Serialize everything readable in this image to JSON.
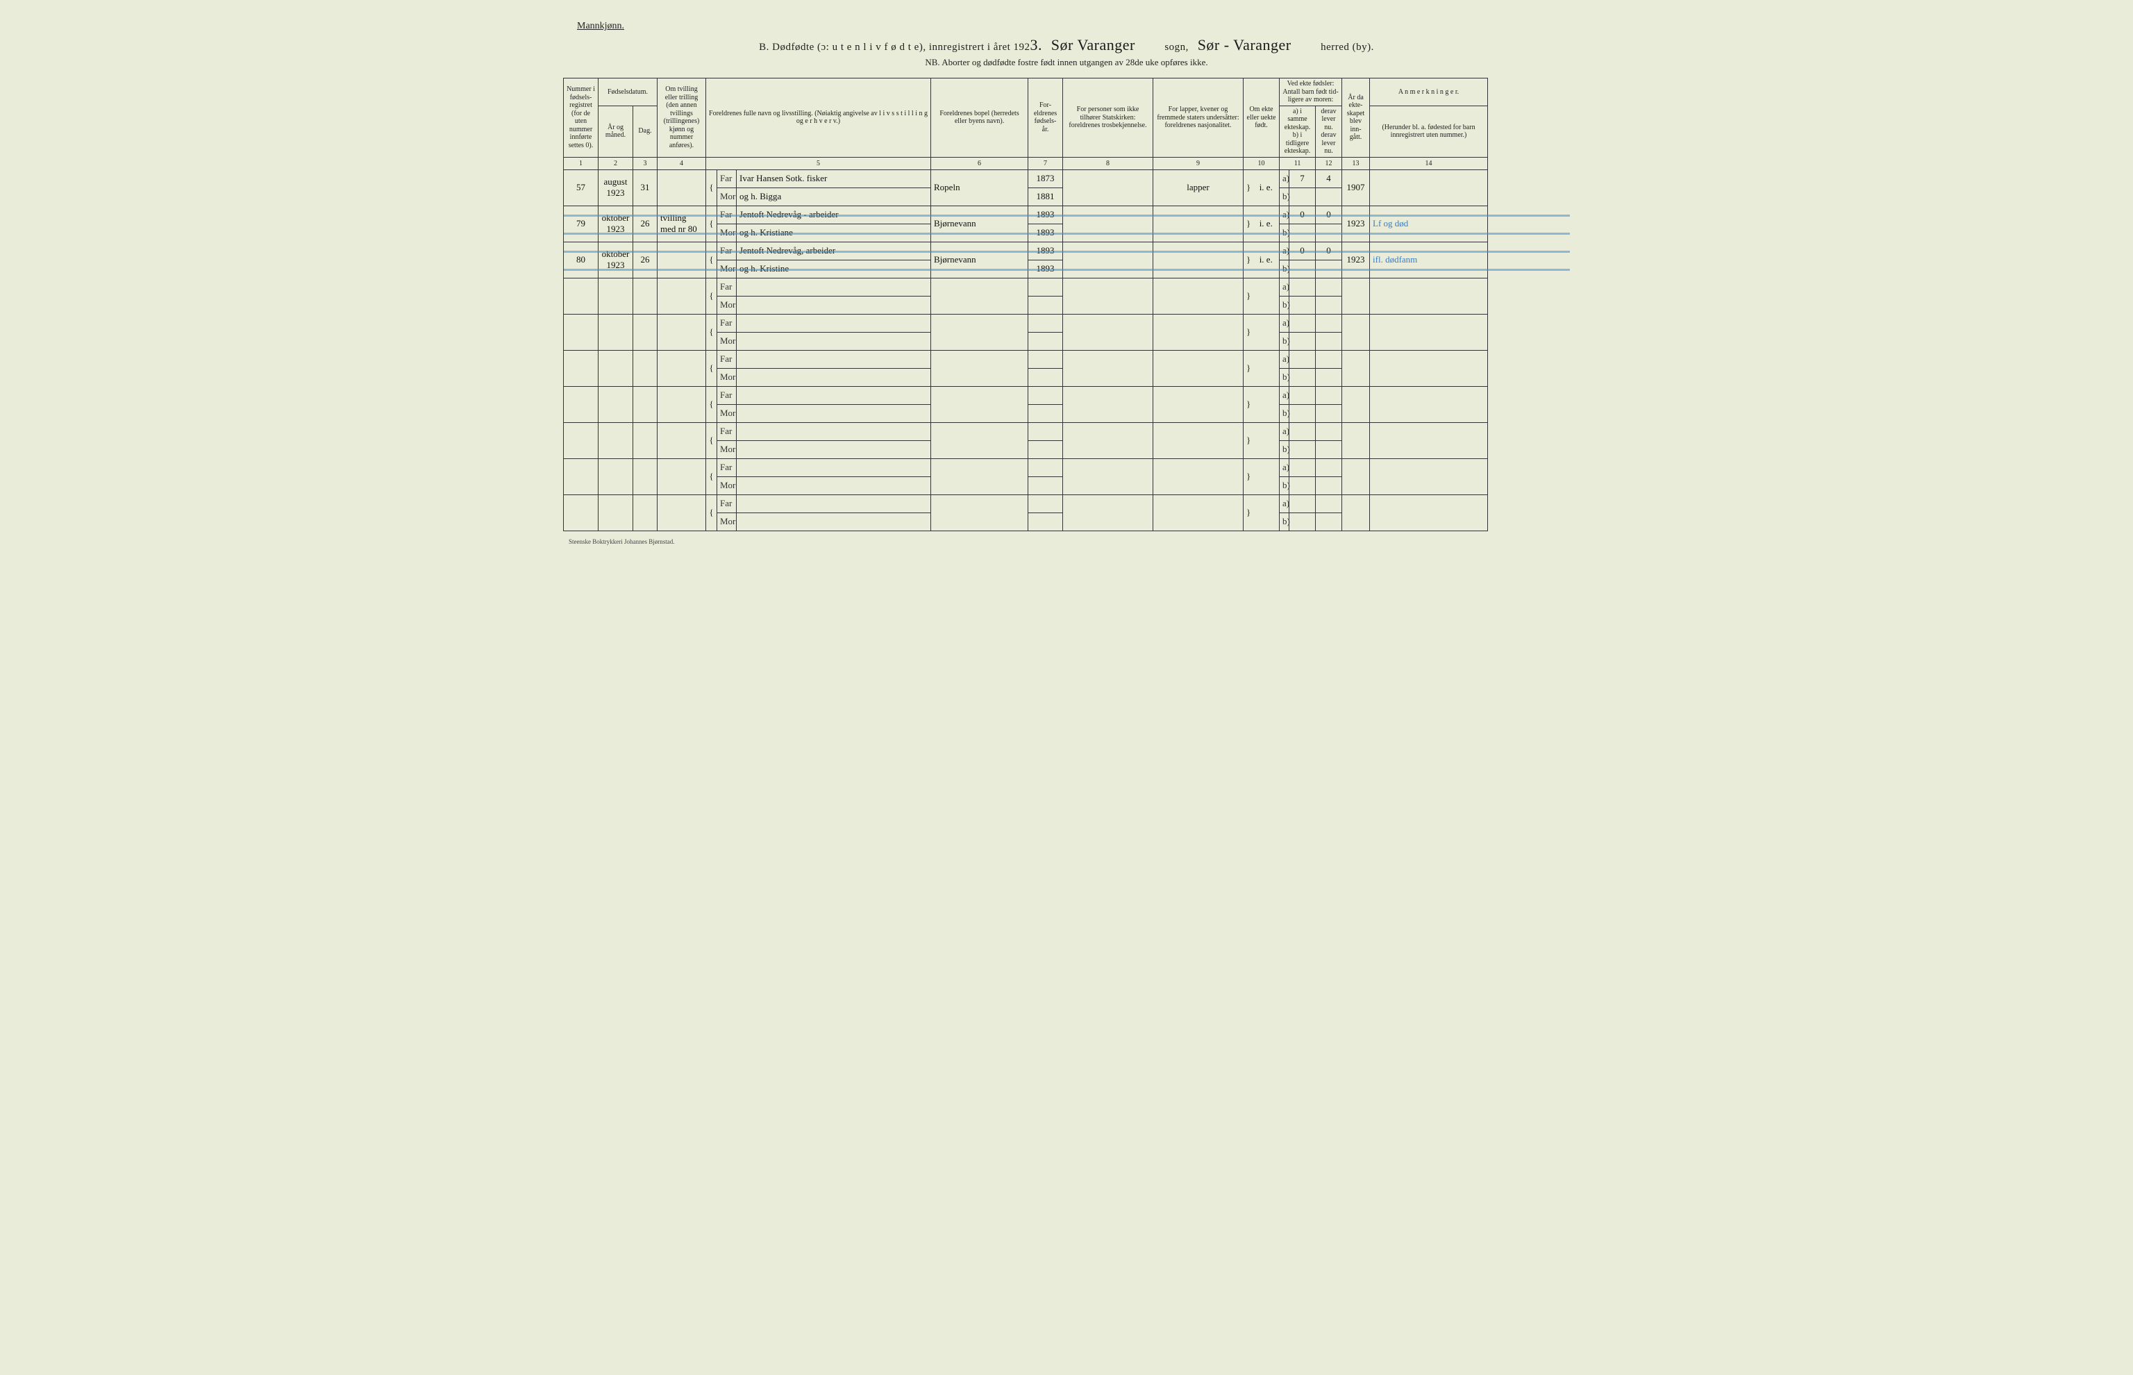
{
  "header": {
    "genderLabel": "Mannkjønn.",
    "formLetter": "B.",
    "formTitle": "Dødfødte (ɔ: u t e n  l i v  f ø d t e), innregistrert i året 192",
    "yearSuffix": "3.",
    "sogn": "Sør Varanger",
    "sognLabel": "sogn,",
    "herred": "Sør - Varanger",
    "herredLabel": "herred (by).",
    "nb": "NB. Aborter og dødfødte fostre født innen utgangen av 28de uke opføres ikke."
  },
  "columns": {
    "c1": "Nummer i fødsels-registret (for de uten nummer innførte settes 0).",
    "c2top": "Fødselsdatum.",
    "c2a": "År og måned.",
    "c2b": "Dag.",
    "c4": "Om tvilling eller trilling (den annen tvillings (trillingenes) kjønn og nummer anføres).",
    "c5": "Foreldrenes fulle navn og livsstilling. (Nøiaktig angivelse av l i v s s t i l l i n g og e r h v e r v.)",
    "c6": "Foreldrenes bopel (herredets eller byens navn).",
    "c7": "For-eldrenes fødsels-år.",
    "c8": "For personer som ikke tilhører Statskirken: foreldrenes trosbekjennelse.",
    "c9": "For lapper, kvener og fremmede staters undersåtter: foreldrenes nasjonalitet.",
    "c10": "Om ekte eller uekte født.",
    "c11top": "Ved ekte fødsler: Antall barn født tid-ligere av moren:",
    "c11a": "a) i samme ekteskap. b) i tidligere ekteskap.",
    "c11b": "derav lever nu. derav lever nu.",
    "c13": "År da ekte-skapet blev inn-gått.",
    "c14top": "A n m e r k n i n g e r.",
    "c14sub": "(Herunder bl. a. fødested for barn innregistrert uten nummer.)"
  },
  "colnums": [
    "1",
    "2",
    "3",
    "4",
    "5",
    "6",
    "7",
    "8",
    "9",
    "10",
    "11",
    "12",
    "13",
    "14"
  ],
  "labels": {
    "far": "Far",
    "mor": "Mor",
    "a": "a)",
    "b": "b)",
    "brace": "}"
  },
  "rows": [
    {
      "num": "57",
      "yearMonth": "august 1923",
      "day": "31",
      "twin": "",
      "far": "Ivar Hansen Sotk. fisker",
      "mor": "og h. Bigga",
      "bopel": "Ropeln",
      "farYear": "1873",
      "morYear": "1881",
      "col8": "",
      "col9": "lapper",
      "ekte": "i. e.",
      "a": "7",
      "b": "4",
      "marriageYear": "1907",
      "remark": "",
      "struck": false
    },
    {
      "num": "79",
      "yearMonth": "oktober 1923",
      "day": "26",
      "twin": "tvilling med nr 80",
      "far": "Jentoft Nedrevåg - arbeider",
      "mor": "og h. Kristiane",
      "bopel": "Bjørnevann",
      "farYear": "1893",
      "morYear": "1893",
      "col8": "",
      "col9": "",
      "ekte": "i. e.",
      "a": "0",
      "b": "0",
      "marriageYear": "1923",
      "remark": "Lf og død",
      "struck": true
    },
    {
      "num": "80",
      "yearMonth": "oktober 1923",
      "day": "26",
      "twin": "",
      "far": "Jentoft Nedrevåg, arbeider",
      "mor": "og h. Kristine",
      "bopel": "Bjørnevann",
      "farYear": "1893",
      "morYear": "1893",
      "col8": "",
      "col9": "",
      "ekte": "i. e.",
      "a": "0",
      "b": "0",
      "marriageYear": "1923",
      "remark": "ifl. dødfanm",
      "struck": true
    }
  ],
  "emptyRows": 7,
  "printer": "Steenske Boktrykkeri Johannes Bjørnstad."
}
